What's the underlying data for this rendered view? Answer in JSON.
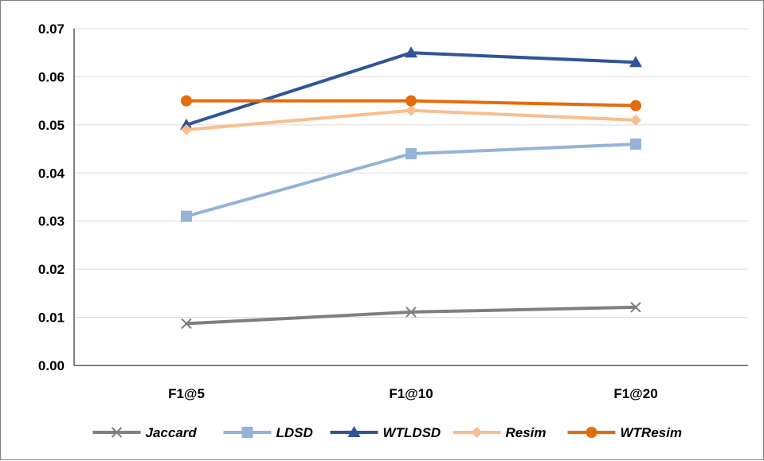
{
  "chart_data": {
    "type": "line",
    "title": "",
    "xlabel": "",
    "ylabel": "",
    "categories": [
      "F1@5",
      "F1@10",
      "F1@20"
    ],
    "ylim": [
      0,
      0.07
    ],
    "yticks": [
      "0.00",
      "0.01",
      "0.02",
      "0.03",
      "0.04",
      "0.05",
      "0.06",
      "0.07"
    ],
    "grid": true,
    "legend_position": "bottom",
    "series": [
      {
        "name": "Jaccard",
        "values": [
          0.0087,
          0.0111,
          0.0121
        ],
        "color": "#7f7f7f",
        "marker": "x-icon"
      },
      {
        "name": "LDSD",
        "values": [
          0.031,
          0.044,
          0.046
        ],
        "color": "#95b3d7",
        "marker": "square-icon"
      },
      {
        "name": "WTLDSD",
        "values": [
          0.05,
          0.065,
          0.063
        ],
        "color": "#2f5597",
        "marker": "triangle-icon"
      },
      {
        "name": "Resim",
        "values": [
          0.049,
          0.053,
          0.051
        ],
        "color": "#f8be8f",
        "marker": "diamond-icon"
      },
      {
        "name": "WTResim",
        "values": [
          0.055,
          0.055,
          0.054
        ],
        "color": "#e46c0a",
        "marker": "circle-icon"
      }
    ]
  }
}
